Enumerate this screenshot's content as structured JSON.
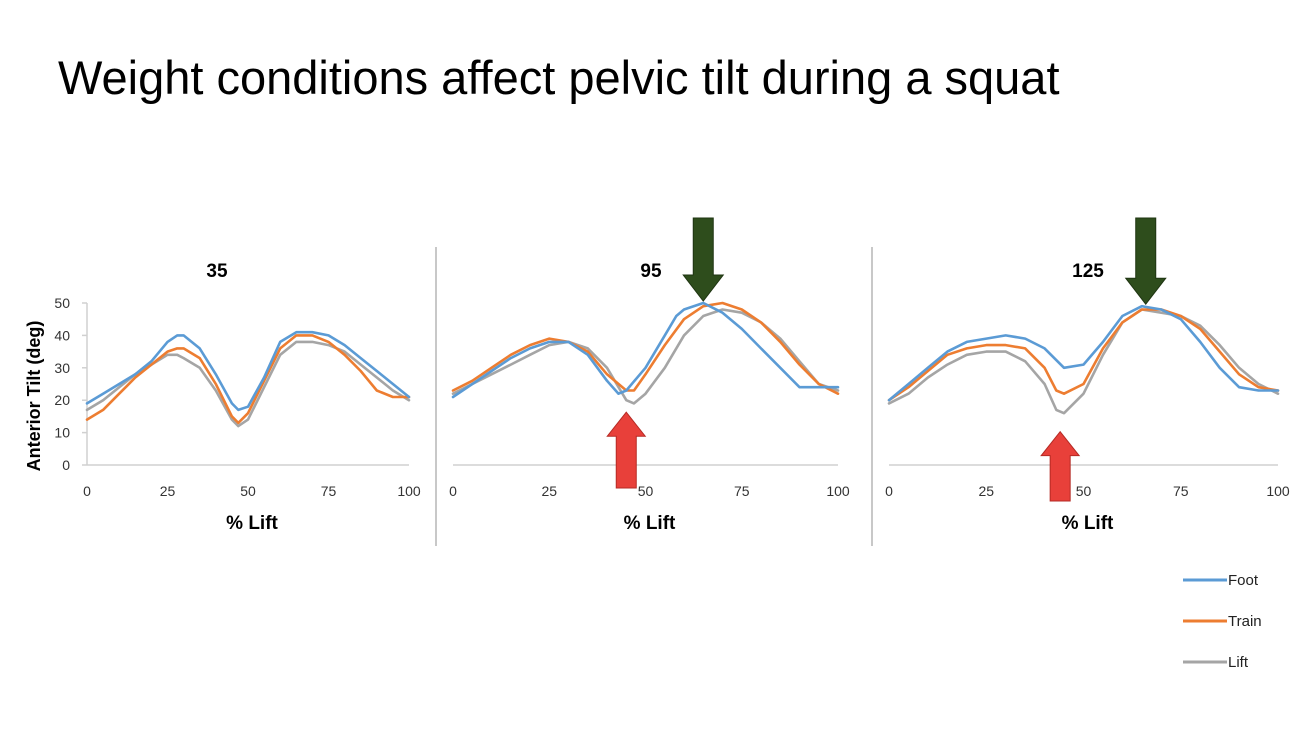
{
  "slide": {
    "title": "Weight conditions affect pelvic tilt during a squat"
  },
  "colors": {
    "Foot": "#5b9bd5",
    "Train": "#ed7d31",
    "Lift": "#a5a5a5",
    "up_arrow": "#e8403a",
    "down_arrow": "#2e4d1c",
    "axis": "#d0d0d0",
    "divider": "#b5b5b5"
  },
  "legend": {
    "position": "bottom-right",
    "entries": [
      "Foot",
      "Train",
      "Lift"
    ]
  },
  "chart_data": [
    {
      "type": "line",
      "title": "35",
      "xlabel": "% Lift",
      "ylabel": "Anterior Tilt (deg)",
      "xlim": [
        0,
        100
      ],
      "ylim": [
        0,
        50
      ],
      "x_ticks": [
        "0",
        "25",
        "50",
        "75",
        "100"
      ],
      "y_ticks": [
        "0",
        "10",
        "20",
        "30",
        "40",
        "50"
      ],
      "grid": false,
      "arrows": [],
      "series": [
        {
          "name": "Foot",
          "x": [
            0,
            5,
            10,
            15,
            20,
            25,
            28,
            30,
            35,
            40,
            45,
            47,
            50,
            55,
            60,
            65,
            70,
            75,
            80,
            85,
            90,
            95,
            100
          ],
          "y": [
            19,
            22,
            25,
            28,
            32,
            38,
            40,
            40,
            36,
            28,
            19,
            17,
            18,
            27,
            38,
            41,
            41,
            40,
            37,
            33,
            29,
            25,
            21
          ]
        },
        {
          "name": "Train",
          "x": [
            0,
            5,
            10,
            15,
            20,
            25,
            28,
            30,
            35,
            40,
            45,
            47,
            50,
            55,
            60,
            65,
            70,
            75,
            80,
            85,
            90,
            95,
            100
          ],
          "y": [
            14,
            17,
            22,
            27,
            31,
            35,
            36,
            36,
            33,
            25,
            15,
            13,
            16,
            26,
            36,
            40,
            40,
            38,
            34,
            29,
            23,
            21,
            21
          ]
        },
        {
          "name": "Lift",
          "x": [
            0,
            5,
            10,
            15,
            20,
            25,
            28,
            30,
            35,
            40,
            45,
            47,
            50,
            55,
            60,
            65,
            70,
            75,
            80,
            85,
            90,
            95,
            100
          ],
          "y": [
            17,
            20,
            24,
            28,
            31,
            34,
            34,
            33,
            30,
            23,
            14,
            12,
            14,
            24,
            34,
            38,
            38,
            37,
            35,
            31,
            27,
            23,
            20
          ]
        }
      ]
    },
    {
      "type": "line",
      "title": "95",
      "xlabel": "% Lift",
      "ylabel": "",
      "xlim": [
        0,
        100
      ],
      "ylim": [
        0,
        50
      ],
      "x_ticks": [
        "0",
        "25",
        "50",
        "75",
        "100"
      ],
      "y_ticks": [],
      "grid": false,
      "arrows": [
        {
          "direction": "down",
          "x": 65,
          "y": 50
        },
        {
          "direction": "up",
          "x": 45,
          "y": 20
        }
      ],
      "series": [
        {
          "name": "Foot",
          "x": [
            0,
            5,
            10,
            15,
            20,
            25,
            30,
            35,
            40,
            43,
            45,
            50,
            55,
            58,
            60,
            65,
            70,
            75,
            80,
            85,
            90,
            95,
            100
          ],
          "y": [
            21,
            25,
            29,
            33,
            36,
            38,
            38,
            34,
            26,
            22,
            23,
            30,
            40,
            46,
            48,
            50,
            47,
            42,
            36,
            30,
            24,
            24,
            24
          ]
        },
        {
          "name": "Train",
          "x": [
            0,
            5,
            10,
            15,
            20,
            25,
            30,
            35,
            40,
            45,
            47,
            50,
            55,
            60,
            65,
            70,
            75,
            80,
            85,
            90,
            95,
            100
          ],
          "y": [
            23,
            26,
            30,
            34,
            37,
            39,
            38,
            35,
            28,
            23,
            23,
            28,
            37,
            45,
            49,
            50,
            48,
            44,
            38,
            31,
            25,
            22
          ]
        },
        {
          "name": "Lift",
          "x": [
            0,
            5,
            10,
            15,
            20,
            25,
            30,
            35,
            40,
            45,
            47,
            50,
            55,
            60,
            65,
            70,
            75,
            80,
            85,
            90,
            95,
            100
          ],
          "y": [
            22,
            25,
            28,
            31,
            34,
            37,
            38,
            36,
            30,
            20,
            19,
            22,
            30,
            40,
            46,
            48,
            47,
            44,
            39,
            32,
            25,
            23
          ]
        }
      ]
    },
    {
      "type": "line",
      "title": "125",
      "xlabel": "% Lift",
      "ylabel": "",
      "xlim": [
        0,
        100
      ],
      "ylim": [
        0,
        50
      ],
      "x_ticks": [
        "0",
        "25",
        "50",
        "75",
        "100"
      ],
      "y_ticks": [],
      "grid": false,
      "arrows": [
        {
          "direction": "down",
          "x": 66,
          "y": 49
        },
        {
          "direction": "up",
          "x": 44,
          "y": 14
        }
      ],
      "series": [
        {
          "name": "Foot",
          "x": [
            0,
            5,
            10,
            15,
            20,
            25,
            30,
            35,
            40,
            45,
            50,
            55,
            60,
            65,
            70,
            75,
            80,
            85,
            90,
            95,
            100
          ],
          "y": [
            20,
            25,
            30,
            35,
            38,
            39,
            40,
            39,
            36,
            30,
            31,
            38,
            46,
            49,
            48,
            45,
            38,
            30,
            24,
            23,
            23
          ]
        },
        {
          "name": "Train",
          "x": [
            0,
            5,
            10,
            15,
            20,
            25,
            30,
            35,
            40,
            43,
            45,
            50,
            55,
            60,
            65,
            70,
            75,
            80,
            85,
            90,
            95,
            100
          ],
          "y": [
            20,
            24,
            29,
            34,
            36,
            37,
            37,
            36,
            30,
            23,
            22,
            25,
            36,
            44,
            48,
            48,
            46,
            42,
            35,
            28,
            24,
            23
          ]
        },
        {
          "name": "Lift",
          "x": [
            0,
            5,
            10,
            15,
            20,
            25,
            30,
            35,
            40,
            43,
            45,
            50,
            55,
            60,
            65,
            70,
            75,
            80,
            85,
            90,
            95,
            100
          ],
          "y": [
            19,
            22,
            27,
            31,
            34,
            35,
            35,
            32,
            25,
            17,
            16,
            22,
            34,
            44,
            48,
            47,
            46,
            43,
            37,
            30,
            25,
            22
          ]
        }
      ]
    }
  ]
}
